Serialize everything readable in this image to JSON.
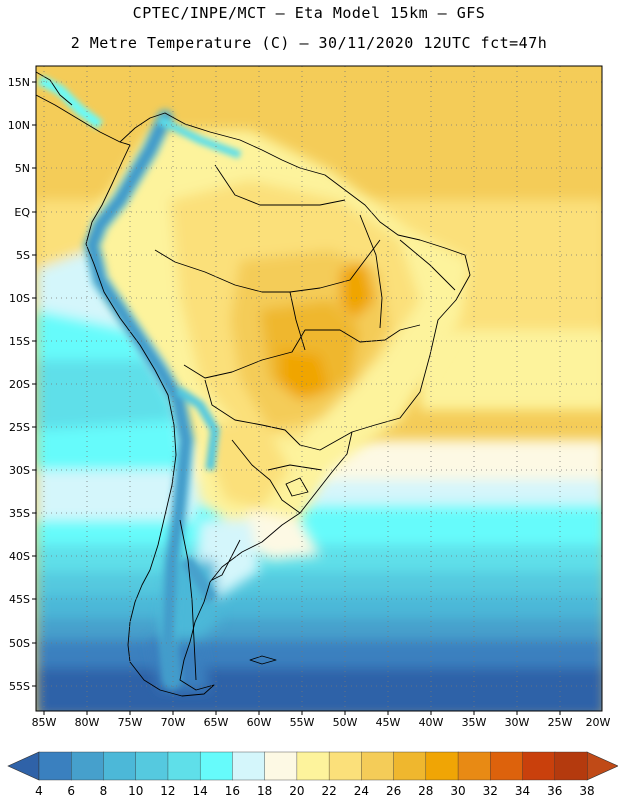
{
  "header": {
    "line1": "CPTEC/INPE/MCT –  Eta Model 15km – GFS",
    "line2": "2 Metre Temperature (C) – 30/11/2020 12UTC fct=47h"
  },
  "axes": {
    "lat_labels": [
      "15N",
      "10N",
      "5N",
      "EQ",
      "5S",
      "10S",
      "15S",
      "20S",
      "25S",
      "30S",
      "35S",
      "40S",
      "45S",
      "50S",
      "55S"
    ],
    "lon_labels": [
      "85W",
      "80W",
      "75W",
      "70W",
      "65W",
      "60W",
      "55W",
      "50W",
      "45W",
      "40W",
      "35W",
      "30W",
      "25W",
      "20W"
    ]
  },
  "colorbar": {
    "ticks": [
      "4",
      "6",
      "8",
      "10",
      "12",
      "14",
      "16",
      "18",
      "20",
      "22",
      "24",
      "26",
      "28",
      "30",
      "32",
      "34",
      "36",
      "38"
    ],
    "colors": [
      "#2f62a8",
      "#3a80bf",
      "#46a0cc",
      "#4cb8d8",
      "#55c9df",
      "#5fdfe9",
      "#66fbfb",
      "#d4f6fb",
      "#fdf9e4",
      "#fdf39c",
      "#fbe07a",
      "#f4cc58",
      "#efb72e",
      "#f0a505",
      "#e88a14",
      "#dd620c",
      "#c9400c",
      "#b43a0e",
      "#c04a17"
    ]
  }
}
